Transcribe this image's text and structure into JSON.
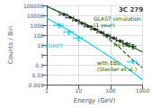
{
  "chart_data": {
    "type": "line",
    "title": "3C 279",
    "xlabel": "Energy (GeV)",
    "ylabel": "Counts / Bin",
    "log": true,
    "grid": true,
    "xlim": [
      1,
      1000
    ],
    "ylim": [
      0.001,
      100000
    ],
    "xticks": [
      1,
      10,
      100,
      1000
    ],
    "yticks": [
      0.001,
      0.01,
      0.1,
      1,
      10,
      100,
      1000,
      10000,
      100000
    ],
    "series": [
      {
        "type": "line",
        "color": "#00ccff",
        "line_style": "solid",
        "x": [
          1,
          2,
          5,
          10,
          20,
          50,
          100,
          200,
          500,
          1000
        ],
        "values": [
          5000,
          1500,
          300,
          70,
          17,
          2.5,
          0.6,
          0.14,
          0.018,
          0.003
        ]
      },
      {
        "type": "line",
        "color": "#006600",
        "line_style": "solid",
        "x": [
          1,
          2,
          5,
          10,
          20,
          50,
          100,
          200,
          500,
          1000
        ],
        "values": [
          80000,
          30000,
          8000,
          2500,
          800,
          200,
          65,
          22,
          6,
          2
        ]
      },
      {
        "type": "line",
        "color": "#006600",
        "line_style": "dashed",
        "x": [
          1,
          2,
          5,
          10,
          30,
          60,
          100,
          200,
          500,
          1000
        ],
        "values": [
          80000,
          30000,
          8000,
          2500,
          600,
          120,
          30,
          5,
          0.3,
          0.05
        ]
      },
      {
        "type": "scatter",
        "color": "#222222",
        "marker": "circle",
        "x": [
          3.5,
          5.5,
          8.5,
          13,
          20,
          32,
          50,
          80,
          125,
          200,
          320,
          500
        ],
        "values": [
          12000,
          6000,
          3000,
          1500,
          750,
          380,
          190,
          95,
          50,
          25,
          13,
          7
        ],
        "xerr_lo": [
          1.0,
          1.5,
          2.0,
          3.0,
          5.0,
          8.0,
          12.0,
          20.0,
          30.0,
          50.0,
          80.0,
          120.0
        ],
        "xerr_hi": [
          1.0,
          1.5,
          2.0,
          3.0,
          5.0,
          8.0,
          12.0,
          20.0,
          30.0,
          50.0,
          80.0,
          120.0
        ],
        "yerr_lo": [
          2000,
          1000,
          500,
          250,
          120,
          60,
          35,
          18,
          10,
          6,
          4,
          3
        ],
        "yerr_hi": [
          3000,
          1500,
          700,
          350,
          170,
          85,
          45,
          24,
          14,
          8,
          5,
          4
        ]
      },
      {
        "type": "scatter",
        "color": "#00ccff",
        "marker": "plus",
        "x": [
          2.5,
          5.0,
          10.0,
          500.0
        ],
        "values": [
          1000,
          200,
          50,
          0.2
        ],
        "xerr_lo": [
          0.8,
          1.5,
          3.0,
          150.0
        ],
        "xerr_hi": [
          0.8,
          1.5,
          3.0,
          150.0
        ],
        "yerr_lo": [
          400,
          80,
          25,
          0.075
        ],
        "yerr_hi": [
          400,
          80,
          25,
          0.075
        ],
        "upper_limit": [
          false,
          false,
          false,
          true
        ]
      }
    ],
    "annotations": [
      {
        "text": "GLAST simulation\n(1 year)",
        "color": "#006600"
      },
      {
        "text": "no EBL",
        "color": "#006600"
      },
      {
        "text": "with EBL\n(Stecker et al.)",
        "color": "#006600"
      },
      {
        "text": "EGRET",
        "color": "#00ccff"
      }
    ]
  }
}
